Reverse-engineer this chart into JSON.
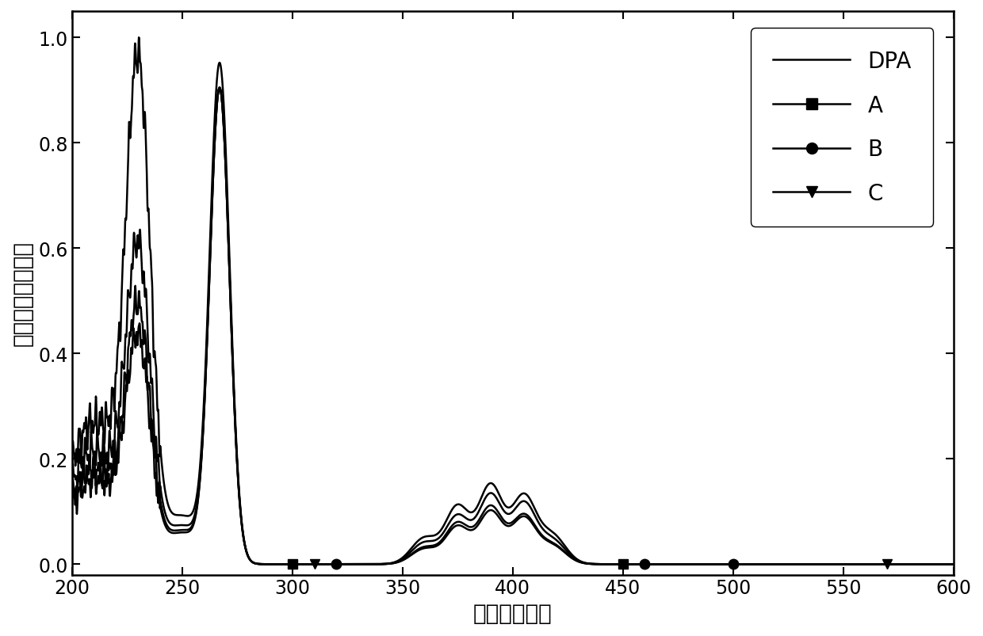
{
  "xlabel": "波长（纳米）",
  "ylabel": "强度（任意单位）",
  "xlim": [
    200,
    600
  ],
  "ylim": [
    -0.02,
    1.05
  ],
  "xticks": [
    200,
    250,
    300,
    350,
    400,
    450,
    500,
    550,
    600
  ],
  "yticks": [
    0.0,
    0.2,
    0.4,
    0.6,
    0.8,
    1.0
  ],
  "background_color": "#ffffff",
  "label_fontsize": 20,
  "tick_fontsize": 17,
  "legend_fontsize": 20,
  "line_width": 1.8
}
